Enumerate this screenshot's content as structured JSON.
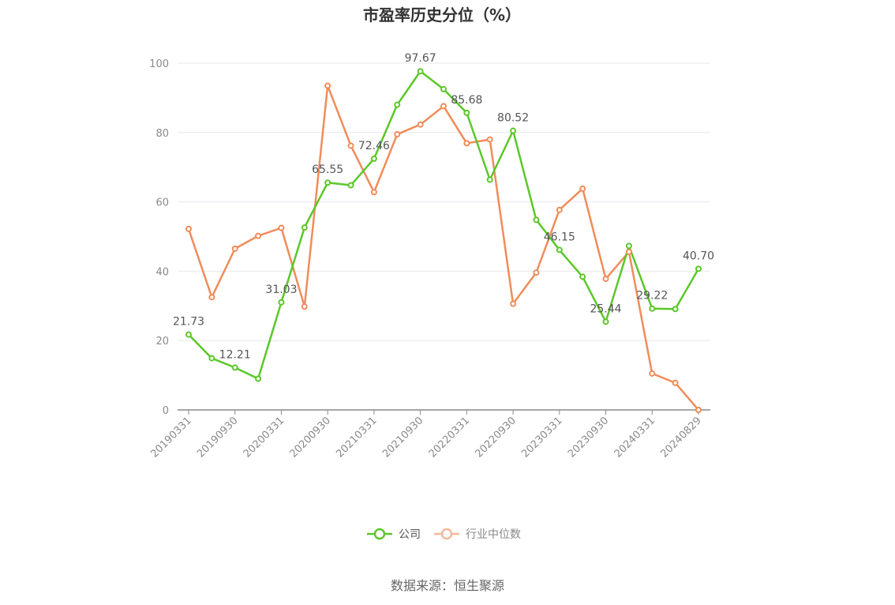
{
  "chart_data": {
    "type": "line",
    "title": "市盈率历史分位（%）",
    "ylim": [
      0,
      100
    ],
    "yticks": [
      0,
      20,
      40,
      60,
      80,
      100
    ],
    "xtick_labels": [
      "20190331",
      "20190930",
      "20200331",
      "20200930",
      "20210331",
      "20210930",
      "20220331",
      "20220930",
      "20230331",
      "20230930",
      "20240331",
      "20240829"
    ],
    "x": [
      "20190331",
      "20190630",
      "20190930",
      "20191231",
      "20200331",
      "20200630",
      "20200930",
      "20201231",
      "20210331",
      "20210630",
      "20210930",
      "20211231",
      "20220331",
      "20220630",
      "20220930",
      "20221231",
      "20230331",
      "20230630",
      "20230930",
      "20231231",
      "20240331",
      "20240630",
      "20240829"
    ],
    "series": [
      {
        "name": "公司",
        "color": "#5cc72a",
        "values": [
          21.73,
          14.9,
          12.21,
          9.0,
          31.03,
          52.6,
          65.55,
          64.8,
          72.46,
          88.0,
          97.67,
          92.5,
          85.68,
          66.4,
          80.52,
          54.8,
          46.15,
          38.4,
          25.44,
          47.3,
          29.22,
          29.1,
          40.7
        ],
        "labels": {
          "0": "21.73",
          "2": "12.21",
          "4": "31.03",
          "6": "65.55",
          "8": "72.46",
          "10": "97.67",
          "12": "85.68",
          "14": "80.52",
          "16": "46.15",
          "18": "25.44",
          "20": "29.22",
          "22": "40.70"
        }
      },
      {
        "name": "行业中位数",
        "color": "#f08c5a",
        "values": [
          52.2,
          32.5,
          46.5,
          50.2,
          52.5,
          29.8,
          93.5,
          76.2,
          62.8,
          79.5,
          82.3,
          87.6,
          76.9,
          78.0,
          30.6,
          39.6,
          57.7,
          63.8,
          37.8,
          45.6,
          10.5,
          7.8,
          0.0
        ]
      }
    ],
    "legend_position": "bottom",
    "grid": true
  },
  "source_text": "数据来源：恒生聚源"
}
